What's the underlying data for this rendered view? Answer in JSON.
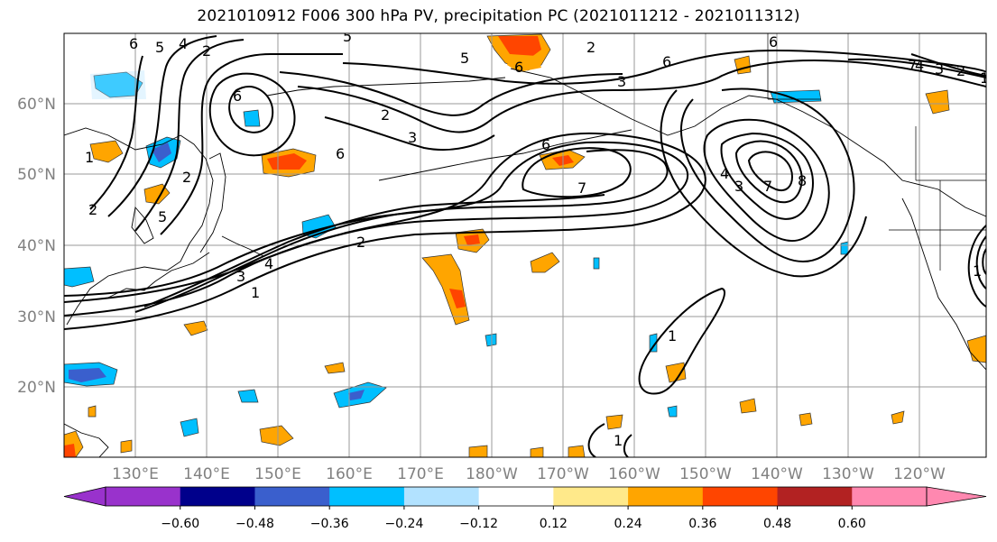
{
  "title": "2021010912 F006 300 hPa PV, precipitation PC (2021011212 - 2021011312)",
  "lon_labels": [
    "130°E",
    "140°E",
    "150°E",
    "160°E",
    "170°E",
    "180°W",
    "170°W",
    "160°W",
    "150°W",
    "140°W",
    "130°W",
    "120°W"
  ],
  "lat_labels": [
    "60°N",
    "50°N",
    "40°N",
    "30°N",
    "20°N"
  ],
  "colorbar": {
    "ticks": [
      "−0.60",
      "−0.48",
      "−0.36",
      "−0.24",
      "−0.12",
      "0.12",
      "0.24",
      "0.36",
      "0.48",
      "0.60"
    ],
    "colors": [
      "#9932cc",
      "#00008b",
      "#3a5fcd",
      "#00bfff",
      "#b2e2ff",
      "#ffffff",
      "#ffe98a",
      "#ffa500",
      "#ff4500",
      "#b22222",
      "#ff88b0"
    ]
  },
  "pv_contour_labels": [
    "6",
    "5",
    "4",
    "2",
    "6",
    "2",
    "3",
    "2",
    "6",
    "7",
    "6",
    "6",
    "5",
    "3",
    "2",
    "4",
    "1",
    "1",
    "1",
    "2",
    "5",
    "8",
    "7",
    "4",
    "3",
    "6",
    "2",
    "3",
    "1",
    "7",
    "6",
    "5",
    "4",
    "3",
    "2",
    "1",
    "1"
  ],
  "fill_colors": {
    "positive_light": "#ffe98a",
    "positive_mid": "#ffa500",
    "positive_high": "#ff4500",
    "positive_max": "#b22222",
    "negative_light": "#b2e2ff",
    "negative_mid": "#00bfff",
    "negative_high": "#3a5fcd"
  }
}
